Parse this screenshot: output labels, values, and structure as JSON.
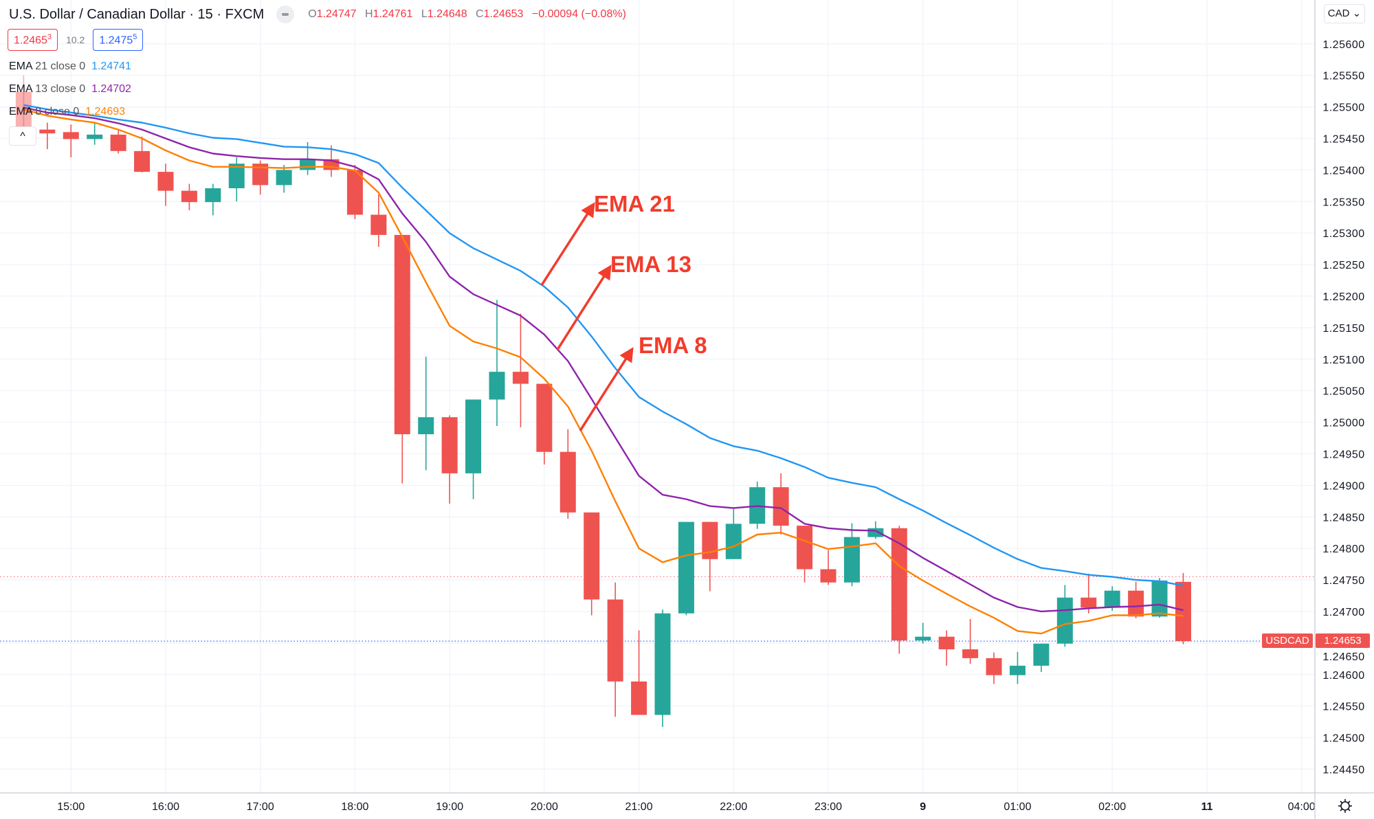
{
  "header": {
    "title": "U.S. Dollar / Canadian Dollar · 15 · FXCM",
    "ohlc": {
      "o_label": "O",
      "o": "1.24747",
      "h_label": "H",
      "h": "1.24761",
      "l_label": "L",
      "l": "1.24648",
      "c_label": "C",
      "c": "1.24653",
      "change": "−0.00094 (−0.08%)"
    },
    "sell_price": "1.2465",
    "sell_price_sup": "3",
    "spread": "10.2",
    "buy_price": "1.2475",
    "buy_price_sup": "5"
  },
  "legend": [
    {
      "label": "EMA",
      "params": "21 close 0",
      "value": "1.24741",
      "color": "#2196f3"
    },
    {
      "label": "EMA",
      "params": "13 close 0",
      "value": "1.24702",
      "color": "#8e24aa"
    },
    {
      "label": "EMA",
      "params": "8 close 0",
      "value": "1.24693",
      "color": "#ff7f00"
    }
  ],
  "collapse_icon": "chevron-up-icon",
  "collapse_glyph": "^",
  "currency_button": "CAD",
  "symbol_tag": "USDCAD",
  "last_price_tag": "1.24653",
  "settings_icon": "gear-icon",
  "chart_data": {
    "type": "candlestick",
    "symbol": "USDCAD",
    "interval_minutes": 15,
    "colors": {
      "up": "#26a69a",
      "down": "#ef5350",
      "ema21": "#2196f3",
      "ema13": "#8e24aa",
      "ema8": "#ff7f00",
      "annotation": "#f23c2c",
      "ask_line": "#f23645",
      "last_line": "#2962ff"
    },
    "ylim": [
      1.2442,
      1.2564
    ],
    "grid": true,
    "y_ticks": [
      "1.25600",
      "1.25550",
      "1.25500",
      "1.25450",
      "1.25400",
      "1.25350",
      "1.25300",
      "1.25250",
      "1.25200",
      "1.25150",
      "1.25100",
      "1.25050",
      "1.25000",
      "1.24950",
      "1.24900",
      "1.24850",
      "1.24800",
      "1.24750",
      "1.24700",
      "1.24650",
      "1.24600",
      "1.24550",
      "1.24500",
      "1.24450"
    ],
    "x_ticks": [
      {
        "label": "15:00",
        "bar": 2
      },
      {
        "label": "16:00",
        "bar": 6
      },
      {
        "label": "17:00",
        "bar": 10
      },
      {
        "label": "18:00",
        "bar": 14
      },
      {
        "label": "19:00",
        "bar": 18
      },
      {
        "label": "20:00",
        "bar": 22
      },
      {
        "label": "21:00",
        "bar": 26
      },
      {
        "label": "22:00",
        "bar": 30
      },
      {
        "label": "23:00",
        "bar": 34
      },
      {
        "label": "9",
        "bar": 38
      },
      {
        "label": "01:00",
        "bar": 42
      },
      {
        "label": "02:00",
        "bar": 46
      },
      {
        "label": "11",
        "bar": 50
      },
      {
        "label": "04:00",
        "bar": 54
      }
    ],
    "ask_price": 1.24755,
    "last_price": 1.24653,
    "candles": [
      {
        "t": "14:30",
        "o": 1.25524,
        "h": 1.2555,
        "l": 1.2546,
        "c": 1.25468
      },
      {
        "t": "14:45",
        "o": 1.25464,
        "h": 1.25475,
        "l": 1.25433,
        "c": 1.25458
      },
      {
        "t": "15:00",
        "o": 1.2546,
        "h": 1.25472,
        "l": 1.2542,
        "c": 1.25449
      },
      {
        "t": "15:15",
        "o": 1.25449,
        "h": 1.25475,
        "l": 1.2544,
        "c": 1.25456
      },
      {
        "t": "15:30",
        "o": 1.25456,
        "h": 1.25464,
        "l": 1.25426,
        "c": 1.2543
      },
      {
        "t": "15:45",
        "o": 1.2543,
        "h": 1.25453,
        "l": 1.25396,
        "c": 1.25397
      },
      {
        "t": "16:00",
        "o": 1.25397,
        "h": 1.2541,
        "l": 1.25343,
        "c": 1.25367
      },
      {
        "t": "16:15",
        "o": 1.25367,
        "h": 1.25378,
        "l": 1.25336,
        "c": 1.25349
      },
      {
        "t": "16:30",
        "o": 1.25349,
        "h": 1.25378,
        "l": 1.25328,
        "c": 1.25371
      },
      {
        "t": "16:45",
        "o": 1.25371,
        "h": 1.2542,
        "l": 1.2535,
        "c": 1.2541
      },
      {
        "t": "17:00",
        "o": 1.2541,
        "h": 1.25415,
        "l": 1.25361,
        "c": 1.25376
      },
      {
        "t": "17:15",
        "o": 1.25376,
        "h": 1.25408,
        "l": 1.25364,
        "c": 1.254
      },
      {
        "t": "17:30",
        "o": 1.254,
        "h": 1.25444,
        "l": 1.25392,
        "c": 1.25417
      },
      {
        "t": "17:45",
        "o": 1.25417,
        "h": 1.25439,
        "l": 1.25389,
        "c": 1.254
      },
      {
        "t": "18:00",
        "o": 1.254,
        "h": 1.25408,
        "l": 1.25322,
        "c": 1.25329
      },
      {
        "t": "18:15",
        "o": 1.25329,
        "h": 1.25361,
        "l": 1.25278,
        "c": 1.25297
      },
      {
        "t": "18:30",
        "o": 1.25297,
        "h": 1.25297,
        "l": 1.24903,
        "c": 1.24981
      },
      {
        "t": "18:45",
        "o": 1.24981,
        "h": 1.25104,
        "l": 1.24924,
        "c": 1.25008
      },
      {
        "t": "19:00",
        "o": 1.25008,
        "h": 1.25011,
        "l": 1.24871,
        "c": 1.24919
      },
      {
        "t": "19:15",
        "o": 1.24919,
        "h": 1.25036,
        "l": 1.24878,
        "c": 1.25036
      },
      {
        "t": "19:30",
        "o": 1.25036,
        "h": 1.25194,
        "l": 1.24994,
        "c": 1.2508
      },
      {
        "t": "19:45",
        "o": 1.2508,
        "h": 1.25172,
        "l": 1.24992,
        "c": 1.25061
      },
      {
        "t": "20:00",
        "o": 1.25061,
        "h": 1.25061,
        "l": 1.24933,
        "c": 1.24953
      },
      {
        "t": "20:15",
        "o": 1.24953,
        "h": 1.24989,
        "l": 1.24847,
        "c": 1.24857
      },
      {
        "t": "20:30",
        "o": 1.24857,
        "h": 1.24857,
        "l": 1.24694,
        "c": 1.24719
      },
      {
        "t": "20:45",
        "o": 1.24719,
        "h": 1.24746,
        "l": 1.24533,
        "c": 1.24589
      },
      {
        "t": "21:00",
        "o": 1.24589,
        "h": 1.2467,
        "l": 1.24536,
        "c": 1.24536
      },
      {
        "t": "21:15",
        "o": 1.24536,
        "h": 1.24703,
        "l": 1.24517,
        "c": 1.24697
      },
      {
        "t": "21:30",
        "o": 1.24697,
        "h": 1.24842,
        "l": 1.24694,
        "c": 1.24842
      },
      {
        "t": "21:45",
        "o": 1.24842,
        "h": 1.24842,
        "l": 1.24732,
        "c": 1.24783
      },
      {
        "t": "22:00",
        "o": 1.24783,
        "h": 1.24864,
        "l": 1.24783,
        "c": 1.24839
      },
      {
        "t": "22:15",
        "o": 1.24839,
        "h": 1.24906,
        "l": 1.24831,
        "c": 1.24897
      },
      {
        "t": "22:30",
        "o": 1.24897,
        "h": 1.24919,
        "l": 1.24822,
        "c": 1.24836
      },
      {
        "t": "22:45",
        "o": 1.24836,
        "h": 1.24836,
        "l": 1.24746,
        "c": 1.24767
      },
      {
        "t": "23:00",
        "o": 1.24767,
        "h": 1.24797,
        "l": 1.24742,
        "c": 1.24746
      },
      {
        "t": "23:15",
        "o": 1.24746,
        "h": 1.2484,
        "l": 1.2474,
        "c": 1.24818
      },
      {
        "t": "23:30",
        "o": 1.24818,
        "h": 1.24843,
        "l": 1.24815,
        "c": 1.24832
      },
      {
        "t": "23:45",
        "o": 1.24832,
        "h": 1.24836,
        "l": 1.24633,
        "c": 1.24654
      },
      {
        "t": "00:00",
        "o": 1.24654,
        "h": 1.24682,
        "l": 1.24649,
        "c": 1.2466
      },
      {
        "t": "00:15",
        "o": 1.2466,
        "h": 1.2467,
        "l": 1.24614,
        "c": 1.2464
      },
      {
        "t": "00:30",
        "o": 1.2464,
        "h": 1.24688,
        "l": 1.24617,
        "c": 1.24626
      },
      {
        "t": "00:45",
        "o": 1.24626,
        "h": 1.24635,
        "l": 1.24585,
        "c": 1.24599
      },
      {
        "t": "01:00",
        "o": 1.24599,
        "h": 1.24636,
        "l": 1.24585,
        "c": 1.24614
      },
      {
        "t": "01:15",
        "o": 1.24614,
        "h": 1.24649,
        "l": 1.24604,
        "c": 1.24649
      },
      {
        "t": "01:30",
        "o": 1.24649,
        "h": 1.24742,
        "l": 1.24644,
        "c": 1.24722
      },
      {
        "t": "01:45",
        "o": 1.24722,
        "h": 1.2476,
        "l": 1.24697,
        "c": 1.24706
      },
      {
        "t": "02:00",
        "o": 1.24706,
        "h": 1.2474,
        "l": 1.24701,
        "c": 1.24733
      },
      {
        "t": "02:15",
        "o": 1.24733,
        "h": 1.24747,
        "l": 1.24689,
        "c": 1.24692
      },
      {
        "t": "02:30",
        "o": 1.24692,
        "h": 1.24753,
        "l": 1.2469,
        "c": 1.24749
      },
      {
        "t": "02:45",
        "o": 1.24747,
        "h": 1.24761,
        "l": 1.24648,
        "c": 1.24653
      }
    ],
    "series": [
      {
        "name": "EMA 21",
        "color": "#2196f3",
        "values": [
          1.25503,
          1.25496,
          1.25491,
          1.25486,
          1.2548,
          1.25475,
          1.25467,
          1.25458,
          1.25451,
          1.25449,
          1.25443,
          1.25437,
          1.25436,
          1.25433,
          1.25425,
          1.25411,
          1.25372,
          1.25336,
          1.253,
          1.25276,
          1.25258,
          1.2524,
          1.25215,
          1.25182,
          1.25136,
          1.25086,
          1.2504,
          1.25017,
          1.24997,
          1.24975,
          1.24962,
          1.24955,
          1.24943,
          1.24929,
          1.24912,
          1.24904,
          1.24897,
          1.24878,
          1.2486,
          1.2484,
          1.24821,
          1.24801,
          1.24783,
          1.24769,
          1.24764,
          1.24758,
          1.24755,
          1.2475,
          1.24748,
          1.24741
        ]
      },
      {
        "name": "EMA 13",
        "color": "#8e24aa",
        "values": [
          1.25499,
          1.25491,
          1.25487,
          1.25482,
          1.25474,
          1.25464,
          1.2545,
          1.25436,
          1.25426,
          1.25422,
          1.25419,
          1.25417,
          1.25417,
          1.25415,
          1.25405,
          1.25385,
          1.25331,
          1.25286,
          1.25231,
          1.25203,
          1.25186,
          1.25169,
          1.25139,
          1.25097,
          1.25037,
          1.24976,
          1.24915,
          1.24885,
          1.24878,
          1.24867,
          1.24864,
          1.24867,
          1.24864,
          1.24839,
          1.24832,
          1.24829,
          1.24828,
          1.24808,
          1.24785,
          1.24764,
          1.24743,
          1.24722,
          1.24707,
          1.247,
          1.24702,
          1.24705,
          1.24707,
          1.24708,
          1.24711,
          1.24702
        ]
      },
      {
        "name": "EMA 8",
        "color": "#ff7f00",
        "values": [
          1.25496,
          1.25486,
          1.2548,
          1.25475,
          1.25464,
          1.2545,
          1.25431,
          1.25415,
          1.25405,
          1.25405,
          1.25404,
          1.25403,
          1.25405,
          1.25405,
          1.25399,
          1.25364,
          1.25294,
          1.25222,
          1.25153,
          1.25128,
          1.25117,
          1.25103,
          1.25069,
          1.25025,
          1.24955,
          1.24875,
          1.248,
          1.24778,
          1.24789,
          1.24794,
          1.24803,
          1.24822,
          1.24825,
          1.24812,
          1.24799,
          1.24803,
          1.24808,
          1.24772,
          1.24749,
          1.24728,
          1.24708,
          1.2469,
          1.24669,
          1.24665,
          1.2468,
          1.24685,
          1.24694,
          1.24694,
          1.24697,
          1.24693
        ]
      }
    ],
    "annotations": [
      {
        "text": "EMA 21",
        "target_series": "EMA 21"
      },
      {
        "text": "EMA 13",
        "target_series": "EMA 13"
      },
      {
        "text": "EMA 8",
        "target_series": "EMA 8"
      }
    ]
  }
}
